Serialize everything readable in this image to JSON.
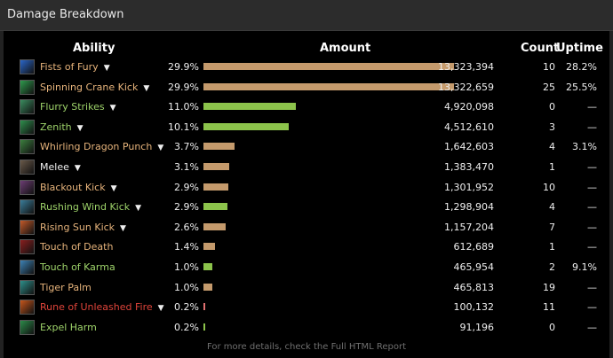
{
  "header": {
    "title": "Damage Breakdown"
  },
  "columns": {
    "ability": "Ability",
    "amount": "Amount",
    "count": "Count",
    "uptime": "Uptime"
  },
  "colors": {
    "orange_bar": "#c49a6c",
    "green_bar": "#8cc34b",
    "name_orange": "#e6b37b",
    "name_green": "#9ed36a",
    "name_white": "#f2f2f2",
    "name_red": "#e0443a"
  },
  "rows": [
    {
      "name": "Fists of Fury",
      "pct": "29.9%",
      "amount": "13,323,394",
      "count": "10",
      "uptime": "28.2%",
      "caret": "▼",
      "bar_pct": 100,
      "bar_color": "orange",
      "name_color": "orange",
      "icon": "fists-of-fury-icon",
      "icon_color": "#2a66c9"
    },
    {
      "name": "Spinning Crane Kick",
      "pct": "29.9%",
      "amount": "13,322,659",
      "count": "25",
      "uptime": "25.5%",
      "caret": "▼",
      "bar_pct": 100,
      "bar_color": "orange",
      "name_color": "orange",
      "icon": "spinning-crane-kick-icon",
      "icon_color": "#2f9a4d"
    },
    {
      "name": "Flurry Strikes",
      "pct": "11.0%",
      "amount": "4,920,098",
      "count": "0",
      "uptime": "—",
      "caret": "▼",
      "bar_pct": 36.9,
      "bar_color": "green",
      "name_color": "green",
      "icon": "flurry-strikes-icon",
      "icon_color": "#3a8c5f"
    },
    {
      "name": "Zenith",
      "pct": "10.1%",
      "amount": "4,512,610",
      "count": "3",
      "uptime": "—",
      "caret": "▼",
      "bar_pct": 33.9,
      "bar_color": "green",
      "name_color": "green",
      "icon": "zenith-icon",
      "icon_color": "#2f8f4d"
    },
    {
      "name": "Whirling Dragon Punch",
      "pct": "3.7%",
      "amount": "1,642,603",
      "count": "4",
      "uptime": "3.1%",
      "caret": "▼",
      "bar_pct": 12.3,
      "bar_color": "orange",
      "name_color": "orange",
      "icon": "whirling-dragon-punch-icon",
      "icon_color": "#3c7f3f"
    },
    {
      "name": "Melee",
      "pct": "3.1%",
      "amount": "1,383,470",
      "count": "1",
      "uptime": "—",
      "caret": "▼",
      "bar_pct": 10.4,
      "bar_color": "orange",
      "name_color": "white",
      "icon": "melee-icon",
      "icon_color": "#6a5a4a"
    },
    {
      "name": "Blackout Kick",
      "pct": "2.9%",
      "amount": "1,301,952",
      "count": "10",
      "uptime": "—",
      "caret": "▼",
      "bar_pct": 9.8,
      "bar_color": "orange",
      "name_color": "orange",
      "icon": "blackout-kick-icon",
      "icon_color": "#6c3d73"
    },
    {
      "name": "Rushing Wind Kick",
      "pct": "2.9%",
      "amount": "1,298,904",
      "count": "4",
      "uptime": "—",
      "caret": "▼",
      "bar_pct": 9.7,
      "bar_color": "green",
      "name_color": "green",
      "icon": "rushing-wind-kick-icon",
      "icon_color": "#3a7d9a"
    },
    {
      "name": "Rising Sun Kick",
      "pct": "2.6%",
      "amount": "1,157,204",
      "count": "7",
      "uptime": "—",
      "caret": "▼",
      "bar_pct": 8.7,
      "bar_color": "orange",
      "name_color": "orange",
      "icon": "rising-sun-kick-icon",
      "icon_color": "#c45a2a"
    },
    {
      "name": "Touch of Death",
      "pct": "1.4%",
      "amount": "612,689",
      "count": "1",
      "uptime": "—",
      "caret": "",
      "bar_pct": 4.6,
      "bar_color": "orange",
      "name_color": "orange",
      "icon": "touch-of-death-icon",
      "icon_color": "#8a1f1f"
    },
    {
      "name": "Touch of Karma",
      "pct": "1.0%",
      "amount": "465,954",
      "count": "2",
      "uptime": "9.1%",
      "caret": "",
      "bar_pct": 3.5,
      "bar_color": "green",
      "name_color": "green",
      "icon": "touch-of-karma-icon",
      "icon_color": "#3d82b5"
    },
    {
      "name": "Tiger Palm",
      "pct": "1.0%",
      "amount": "465,813",
      "count": "19",
      "uptime": "—",
      "caret": "",
      "bar_pct": 3.5,
      "bar_color": "orange",
      "name_color": "orange",
      "icon": "tiger-palm-icon",
      "icon_color": "#2e8f8a"
    },
    {
      "name": "Rune of Unleashed Fire",
      "pct": "0.2%",
      "amount": "100,132",
      "count": "11",
      "uptime": "—",
      "caret": "▼",
      "bar_pct": 0.8,
      "bar_color": "red",
      "name_color": "red",
      "icon": "rune-of-unleashed-fire-icon",
      "icon_color": "#c6561c"
    },
    {
      "name": "Expel Harm",
      "pct": "0.2%",
      "amount": "91,196",
      "count": "0",
      "uptime": "—",
      "caret": "",
      "bar_pct": 0.7,
      "bar_color": "green",
      "name_color": "green",
      "icon": "expel-harm-icon",
      "icon_color": "#2c8a4a"
    }
  ],
  "footer": {
    "text": "For more details, check the Full HTML Report"
  }
}
